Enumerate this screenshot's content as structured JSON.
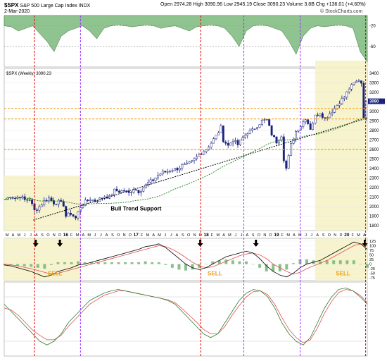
{
  "header": {
    "symbol": "$SPX",
    "name": "S&P 500 Large Cap Index",
    "exchange": "INDX",
    "date": "2-Mar-2020",
    "open_label": "Open",
    "open": "2974.28",
    "high_label": "High",
    "high": "3090.96",
    "low_label": "Low",
    "low": "2945.19",
    "close_label": "Close",
    "close": "3090.23",
    "volume_label": "Volume",
    "volume": "3.8B",
    "change": "Chg +136.01 (+4.60%)",
    "watermark": "© StockCharts.com"
  },
  "colors": {
    "candle": "#1a237e",
    "rsi_area": "#7cb97c",
    "highlight": "#f5f2c8",
    "sell_text": "#e8a020",
    "red_line": "#e00000",
    "purple_line": "#9b30ff",
    "orange_line": "#f0a020",
    "ma_green": "#2e8b2e"
  },
  "chart_data": [
    {
      "type": "area",
      "panel": "rsi",
      "y_ticks": [
        "-20",
        "-60"
      ],
      "ylim": [
        -100,
        0
      ],
      "values": [
        -20,
        -22,
        -30,
        -25,
        -20,
        -35,
        -50,
        -70,
        -40,
        -30,
        -25,
        -20,
        -30,
        -45,
        -25,
        -20,
        -18,
        -20,
        -22,
        -20,
        -18,
        -20,
        -25,
        -22,
        -20,
        -25,
        -30,
        -22,
        -20,
        -18,
        -20,
        -25,
        -40,
        -60,
        -30,
        -20,
        -18,
        -20,
        -25,
        -30,
        -50,
        -75,
        -40,
        -25,
        -20,
        -22,
        -20,
        -18,
        -20,
        -25,
        -70,
        -90
      ]
    },
    {
      "type": "candlestick",
      "panel": "price",
      "legend": "$SPX (Weekly) 3090.23",
      "ylim": [
        1750,
        3450
      ],
      "y_ticks": [
        "3400",
        "3300",
        "3200",
        "3100",
        "3000",
        "2900",
        "2800",
        "2700",
        "2600",
        "2500",
        "2400",
        "2300",
        "2200",
        "2100",
        "2000",
        "1900",
        "1800"
      ],
      "last_price_label": "3090",
      "annotation": "Bull Trend Support",
      "months_x": [
        "M",
        "A",
        "M",
        "J",
        "J",
        "A",
        "S",
        "O",
        "N",
        "D",
        "16",
        "F",
        "M",
        "A",
        "M",
        "J",
        "J",
        "A",
        "S",
        "O",
        "N",
        "D",
        "17",
        "F",
        "M",
        "A",
        "M",
        "J",
        "J",
        "A",
        "S",
        "O",
        "N",
        "D",
        "18",
        "F",
        "M",
        "A",
        "M",
        "J",
        "J",
        "A",
        "S",
        "O",
        "N",
        "D",
        "19",
        "F",
        "M",
        "A",
        "M",
        "J",
        "J",
        "A",
        "S",
        "O",
        "N",
        "D",
        "20",
        "F",
        "M",
        "A"
      ],
      "anchors": [
        [
          0,
          2080
        ],
        [
          2,
          2110
        ],
        [
          4,
          2090
        ],
        [
          6,
          2110
        ],
        [
          8,
          2070
        ],
        [
          10,
          2080
        ],
        [
          12,
          1960
        ],
        [
          14,
          2000
        ],
        [
          16,
          2060
        ],
        [
          18,
          2090
        ],
        [
          20,
          2040
        ],
        [
          22,
          2050
        ],
        [
          24,
          2020
        ],
        [
          25,
          1900
        ],
        [
          27,
          1930
        ],
        [
          29,
          1880
        ],
        [
          31,
          2000
        ],
        [
          33,
          2050
        ],
        [
          35,
          2080
        ],
        [
          37,
          2060
        ],
        [
          39,
          2080
        ],
        [
          41,
          2110
        ],
        [
          43,
          2100
        ],
        [
          45,
          2170
        ],
        [
          47,
          2160
        ],
        [
          49,
          2170
        ],
        [
          51,
          2140
        ],
        [
          53,
          2190
        ],
        [
          55,
          2160
        ],
        [
          57,
          2200
        ],
        [
          59,
          2250
        ],
        [
          61,
          2280
        ],
        [
          63,
          2330
        ],
        [
          65,
          2360
        ],
        [
          67,
          2370
        ],
        [
          69,
          2390
        ],
        [
          71,
          2400
        ],
        [
          73,
          2430
        ],
        [
          75,
          2440
        ],
        [
          77,
          2470
        ],
        [
          79,
          2520
        ],
        [
          81,
          2570
        ],
        [
          83,
          2600
        ],
        [
          85,
          2670
        ],
        [
          87,
          2740
        ],
        [
          89,
          2830
        ],
        [
          90,
          2700
        ],
        [
          92,
          2640
        ],
        [
          94,
          2700
        ],
        [
          96,
          2650
        ],
        [
          98,
          2720
        ],
        [
          100,
          2780
        ],
        [
          102,
          2800
        ],
        [
          104,
          2850
        ],
        [
          106,
          2900
        ],
        [
          108,
          2910
        ],
        [
          110,
          2760
        ],
        [
          112,
          2680
        ],
        [
          114,
          2750
        ],
        [
          115,
          2500
        ],
        [
          116,
          2400
        ],
        [
          118,
          2650
        ],
        [
          120,
          2790
        ],
        [
          122,
          2850
        ],
        [
          124,
          2930
        ],
        [
          126,
          2820
        ],
        [
          128,
          2950
        ],
        [
          130,
          2990
        ],
        [
          132,
          2920
        ],
        [
          134,
          2980
        ],
        [
          136,
          3030
        ],
        [
          138,
          3100
        ],
        [
          140,
          3150
        ],
        [
          142,
          3240
        ],
        [
          144,
          3290
        ],
        [
          146,
          3330
        ],
        [
          147,
          3300
        ],
        [
          148,
          2950
        ],
        [
          149,
          3090
        ]
      ],
      "candles_count": 150,
      "red_lines_x": [
        12.5,
        81.2,
        149.3
      ],
      "purple_lines_x": [
        31.5,
        99.0,
        122.3
      ],
      "orange_levels": [
        3030,
        2920,
        2600
      ],
      "highlight_zones": [
        [
          0,
          31.8
        ],
        [
          128.5,
          150
        ]
      ]
    },
    {
      "type": "line",
      "panel": "macd",
      "y_ticks": [
        "125",
        "100",
        "75",
        "50",
        "25",
        "0",
        "-25",
        "-50",
        "-75"
      ],
      "ylim": [
        -90,
        140
      ],
      "sell_labels": [
        {
          "text": "SELL",
          "x": 21
        },
        {
          "text": "SELL",
          "x": 87
        },
        {
          "text": "SELL",
          "x": 140
        }
      ],
      "macd_line": [
        -5,
        -10,
        -20,
        -30,
        -40,
        -55,
        -70,
        -60,
        -40,
        -30,
        -20,
        -5,
        0,
        10,
        20,
        30,
        40,
        50,
        60,
        70,
        80,
        95,
        100,
        110,
        90,
        60,
        30,
        0,
        -20,
        -30,
        -20,
        0,
        20,
        40,
        50,
        60,
        70,
        60,
        30,
        -10,
        -40,
        -60,
        -70,
        -50,
        -20,
        0,
        10,
        20,
        40,
        60,
        80,
        100,
        120,
        110,
        80
      ],
      "signal_line": [
        0,
        -5,
        -10,
        -18,
        -25,
        -35,
        -45,
        -55,
        -50,
        -40,
        -30,
        -20,
        -10,
        0,
        10,
        20,
        30,
        40,
        50,
        60,
        70,
        80,
        90,
        100,
        95,
        80,
        60,
        35,
        10,
        -10,
        -20,
        -15,
        0,
        15,
        30,
        45,
        55,
        60,
        50,
        30,
        0,
        -20,
        -40,
        -55,
        -45,
        -25,
        -10,
        5,
        20,
        40,
        60,
        80,
        100,
        110,
        100
      ],
      "arrows_x": [
        13,
        23,
        81,
        104,
        149
      ]
    },
    {
      "type": "line",
      "panel": "stochastic",
      "ylim": [
        0,
        100
      ],
      "values": [
        70,
        60,
        50,
        40,
        30,
        20,
        15,
        20,
        30,
        45,
        55,
        65,
        75,
        80,
        85,
        88,
        90,
        88,
        86,
        84,
        82,
        80,
        78,
        75,
        70,
        60,
        50,
        40,
        30,
        25,
        30,
        45,
        60,
        75,
        85,
        90,
        88,
        80,
        65,
        45,
        30,
        20,
        15,
        25,
        45,
        65,
        80,
        90,
        92,
        88,
        80,
        70
      ],
      "signal": [
        65,
        62,
        55,
        45,
        35,
        28,
        22,
        22,
        28,
        40,
        50,
        60,
        70,
        76,
        82,
        85,
        88,
        88,
        86,
        84,
        82,
        80,
        78,
        76,
        72,
        64,
        55,
        46,
        36,
        30,
        30,
        40,
        55,
        68,
        80,
        87,
        88,
        83,
        70,
        52,
        36,
        25,
        18,
        22,
        38,
        58,
        74,
        86,
        90,
        88,
        82,
        72
      ]
    }
  ]
}
